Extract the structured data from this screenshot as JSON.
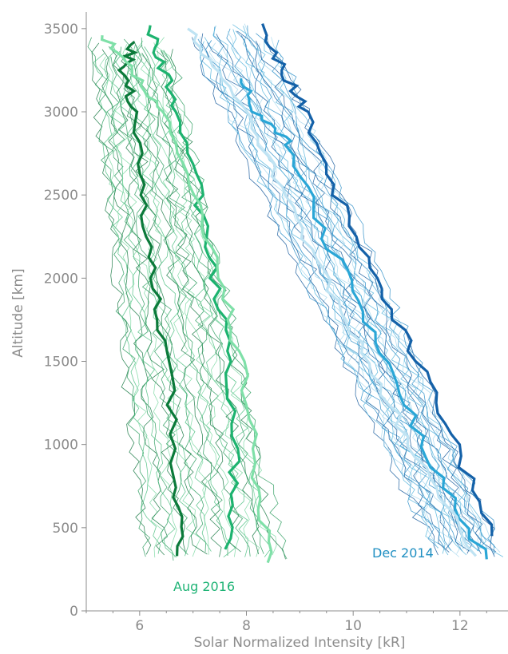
{
  "chart_data": {
    "type": "line",
    "xlabel": "Solar Normalized Intensity [kR]",
    "ylabel": "Altitude [km]",
    "xlim": [
      5.0,
      12.9
    ],
    "ylim": [
      0,
      3600
    ],
    "xticks": [
      6,
      8,
      10,
      12
    ],
    "yticks": [
      0,
      500,
      1000,
      1500,
      2000,
      2500,
      3000,
      3500
    ],
    "grid": false,
    "annotations": [
      {
        "text": "Aug 2016",
        "x": 6.6,
        "y": 140,
        "color": "#1eb375"
      },
      {
        "text": "Dec 2014",
        "x": 10.4,
        "y": 340,
        "color": "#1f8fc2"
      }
    ],
    "groups": [
      {
        "name": "Aug 2016",
        "thin_colors": [
          "#1a7a45",
          "#2e9e60",
          "#4fbf82",
          "#7fd9a4"
        ],
        "bold_series": [
          {
            "color": "#0b7a3a",
            "x": [
              6.7,
              6.7,
              6.5,
              6.3,
              6.0,
              5.9,
              5.7,
              5.9
            ],
            "y": [
              330,
              800,
              1500,
              2000,
              2500,
              3000,
              3250,
              3420
            ]
          },
          {
            "color": "#1db36f",
            "x": [
              7.6,
              7.8,
              7.7,
              7.4,
              7.1,
              6.7,
              6.4,
              6.2
            ],
            "y": [
              370,
              900,
              1500,
              2000,
              2500,
              3000,
              3300,
              3520
            ]
          },
          {
            "color": "#7fe0a8",
            "x": [
              8.4,
              8.2,
              7.9,
              7.5,
              7.0,
              6.4,
              5.9,
              5.3
            ],
            "y": [
              290,
              800,
              1500,
              2000,
              2500,
              3000,
              3250,
              3460
            ]
          }
        ],
        "envelope": {
          "x_left": [
            6.1,
            5.1
          ],
          "x_right": [
            8.7,
            6.5
          ],
          "y": [
            300,
            3450
          ]
        }
      },
      {
        "name": "Dec 2014",
        "thin_colors": [
          "#1a5d9e",
          "#2f8fc8",
          "#59b6dd",
          "#a9d9ee"
        ],
        "bold_series": [
          {
            "color": "#1461a8",
            "x": [
              12.6,
              11.9,
              11.2,
              10.4,
              9.7,
              9.1,
              8.7,
              8.3
            ],
            "y": [
              450,
              1000,
              1500,
              2000,
              2500,
              3000,
              3250,
              3530
            ]
          },
          {
            "color": "#2aa6d6",
            "x": [
              12.5,
              11.6,
              10.9,
              10.2,
              9.4,
              8.8,
              8.2,
              7.9
            ],
            "y": [
              310,
              800,
              1300,
              1800,
              2300,
              2800,
              3000,
              3200
            ]
          },
          {
            "color": "#bfe3f3",
            "x": [
              12.3,
              11.4,
              10.6,
              9.8,
              9.0,
              8.3,
              7.6,
              6.9
            ],
            "y": [
              330,
              800,
              1300,
              1800,
              2300,
              2800,
              3200,
              3500
            ]
          }
        ],
        "envelope": {
          "x_left": [
            11.6,
            6.8
          ],
          "x_right": [
            12.8,
            8.4
          ],
          "y": [
            320,
            3530
          ]
        }
      }
    ]
  }
}
